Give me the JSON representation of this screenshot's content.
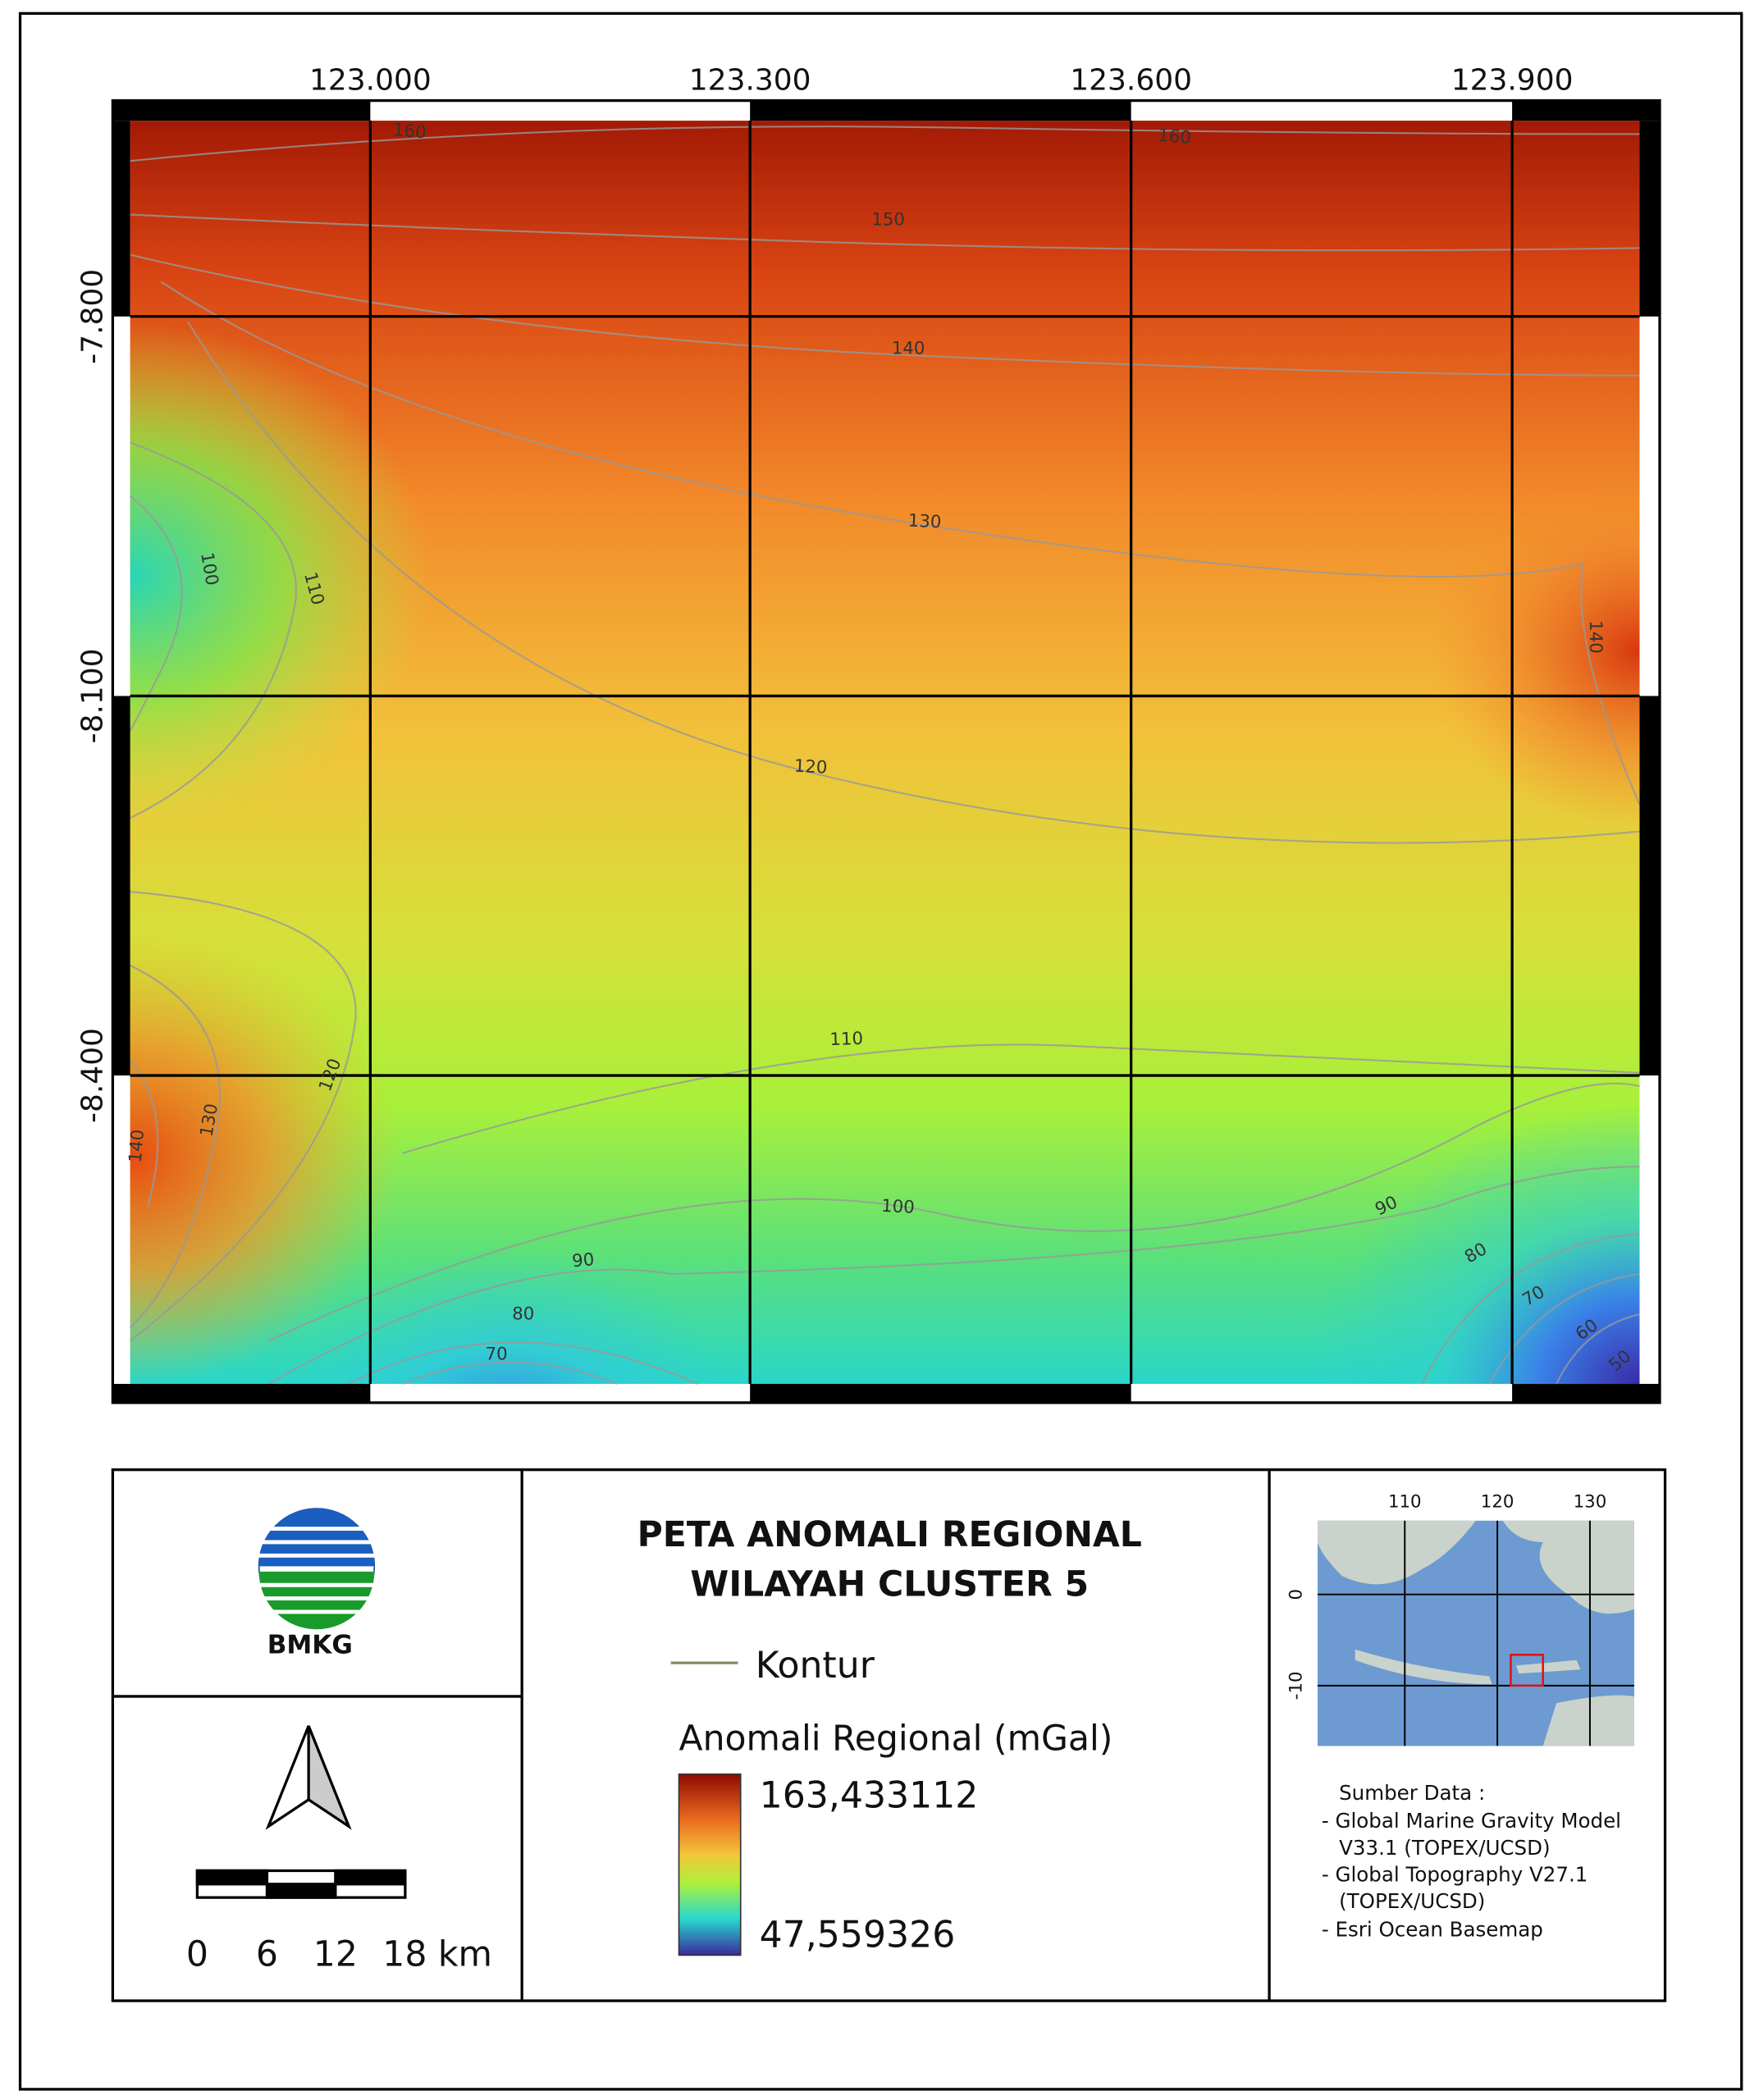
{
  "map": {
    "lon_labels": [
      "123.000",
      "123.300",
      "123.600",
      "123.900"
    ],
    "lat_labels": [
      "-7.800",
      "-8.100",
      "-8.400"
    ],
    "contour_labels": [
      "160",
      "160",
      "150",
      "140",
      "130",
      "100",
      "110",
      "140",
      "120",
      "110",
      "120",
      "130",
      "140",
      "100",
      "90",
      "90",
      "80",
      "70",
      "80",
      "70",
      "60",
      "50"
    ]
  },
  "logo": {
    "text": "BMKG"
  },
  "legend": {
    "title": [
      "PETA ANOMALI REGIONAL",
      "WILAYAH CLUSTER 5"
    ],
    "contour": "Kontur",
    "ramp_title": "Anomali Regional (mGal)",
    "max": "163,433112",
    "min": "47,559326"
  },
  "scale_bar": {
    "labels": [
      "0",
      "6",
      "12",
      "18 km"
    ]
  },
  "inset": {
    "x_labels": [
      "110",
      "120",
      "130"
    ],
    "y_labels": [
      "0",
      "-10"
    ]
  },
  "source": {
    "title": "Sumber Data :",
    "items": [
      "-  Global Marine Gravity Model",
      "V33.1 (TOPEX/UCSD)",
      "-  Global Topography V27.1",
      "(TOPEX/UCSD)",
      "-  Esri Ocean Basemap"
    ]
  }
}
